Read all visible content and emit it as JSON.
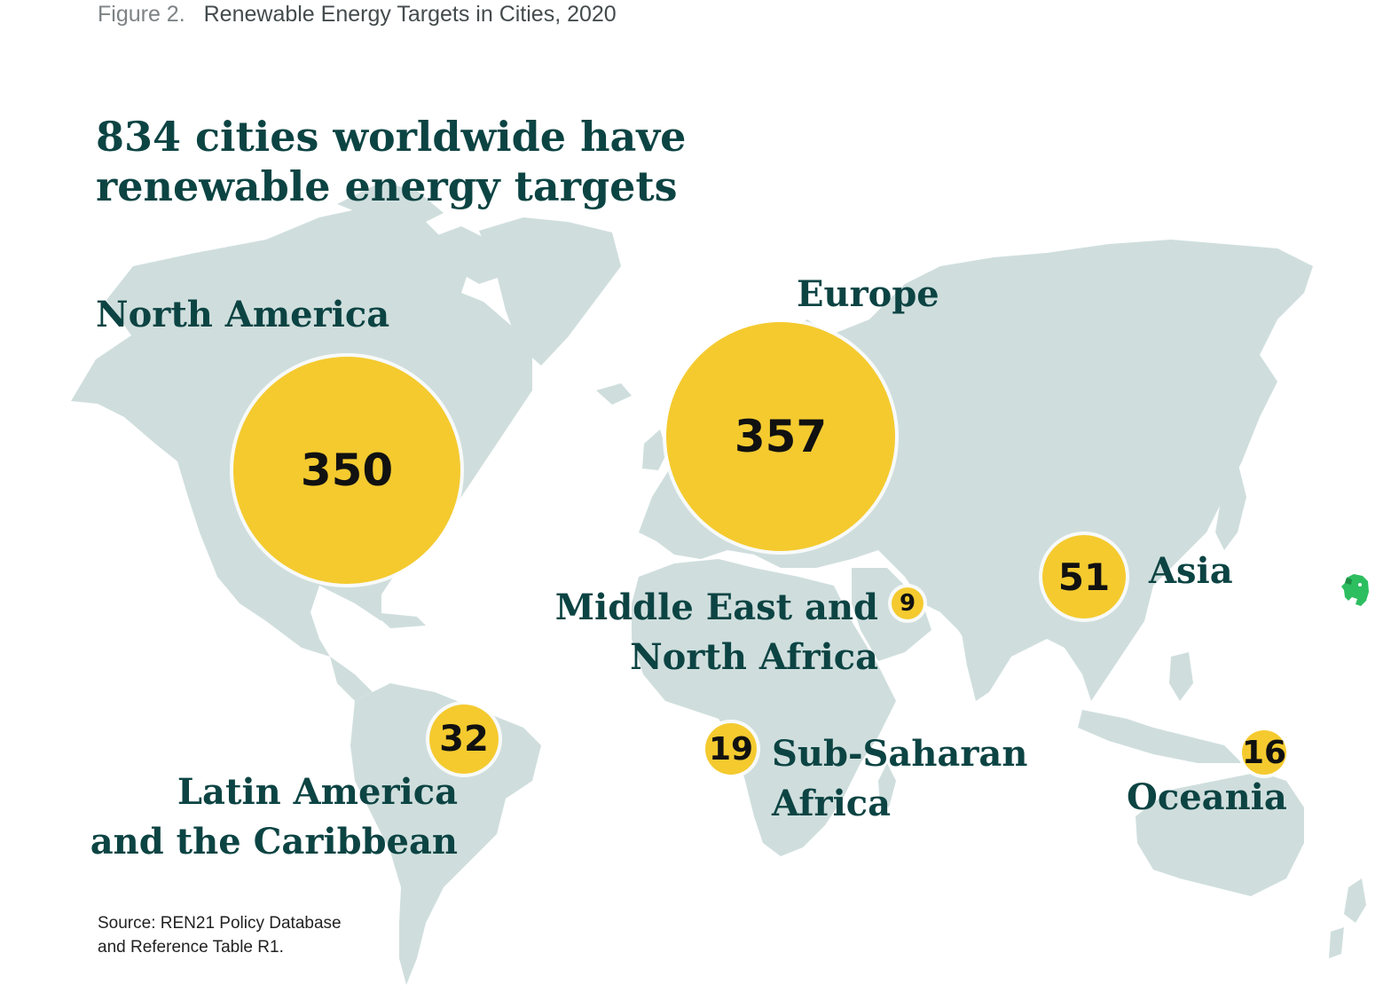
{
  "caption": {
    "figure_label": "Figure 2.",
    "title": "Renewable Energy Targets in Cities, 2020"
  },
  "headline": {
    "line1": "834 cities worldwide have",
    "line2": "renewable energy targets"
  },
  "regions": {
    "north_america": {
      "label": "North America",
      "value": "350"
    },
    "europe": {
      "label": "Europe",
      "value": "357"
    },
    "mena": {
      "label_line1": "Middle East and",
      "label_line2": "North Africa",
      "value": "9"
    },
    "asia": {
      "label": "Asia",
      "value": "51"
    },
    "latin_america": {
      "label_line1": "Latin America",
      "label_line2": "and the Caribbean",
      "value": "32"
    },
    "sub_saharan": {
      "label_line1": "Sub-Saharan",
      "label_line2": "Africa",
      "value": "19"
    },
    "oceania": {
      "label": "Oceania",
      "value": "16"
    }
  },
  "source": {
    "line1": "Source: REN21 Policy Database",
    "line2": "and Reference Table R1."
  },
  "colors": {
    "land": "#cfdedd",
    "bubble": "#f4ca2f",
    "text_dark_green": "#0c4443",
    "evernote_green": "#2dbe60"
  },
  "icons": {
    "app_badge": "evernote-elephant-icon"
  }
}
